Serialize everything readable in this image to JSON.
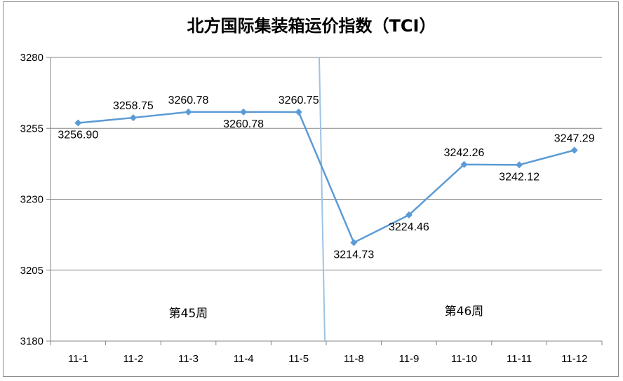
{
  "chart_data": {
    "type": "line",
    "title": "北方国际集装箱运价指数（TCI）",
    "categories": [
      "11-1",
      "11-2",
      "11-3",
      "11-4",
      "11-5",
      "11-8",
      "11-9",
      "11-10",
      "11-11",
      "11-12"
    ],
    "values": [
      3256.9,
      3258.75,
      3260.78,
      3260.78,
      3260.75,
      3214.73,
      3224.46,
      3242.26,
      3242.12,
      3247.29
    ],
    "data_labels": [
      "3256.90",
      "3258.75",
      "3260.78",
      "3260.78",
      "3260.75",
      "3214.73",
      "3224.46",
      "3242.26",
      "3242.12",
      "3247.29"
    ],
    "label_positions": [
      "below",
      "above",
      "above",
      "below",
      "above",
      "below",
      "below",
      "above",
      "below",
      "above"
    ],
    "ylim": [
      3180,
      3280
    ],
    "yticks": [
      3180,
      3205,
      3230,
      3255,
      3280
    ],
    "grid": true,
    "series_color": "#5b9bd5",
    "divider_color": "#9dc3e6",
    "week_labels": [
      "第45周",
      "第46周"
    ],
    "legend": "none"
  }
}
